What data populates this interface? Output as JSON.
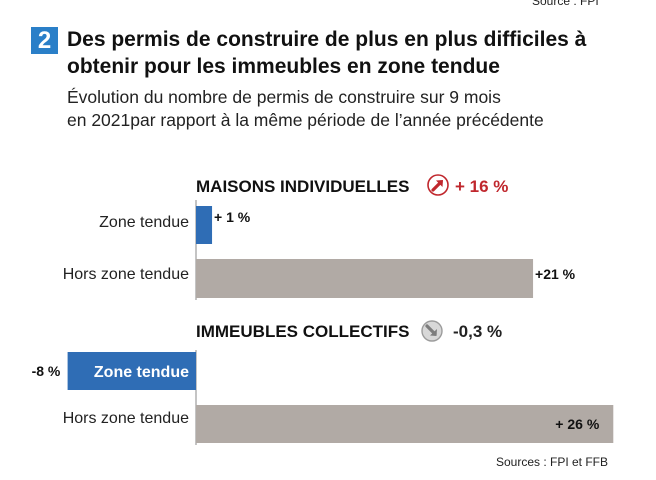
{
  "header": {
    "top_source": "Source : FPI",
    "badge": "2",
    "title": "Des permis de construire de plus en plus difficiles à obtenir pour les immeubles en zone tendue",
    "subtitle_line1": "Évolution du nombre de permis de construire sur 9 mois",
    "subtitle_line2": "en 2021par rapport à la même période de l’année précédente"
  },
  "colors": {
    "zone_tendue": "#2f6db5",
    "hors_zone": "#b1aaa5",
    "up_arrow": "#c0272d",
    "down_arrow": "#9c9c9c"
  },
  "chart_data": {
    "type": "bar",
    "orientation": "horizontal",
    "xlim": [
      -8,
      26
    ],
    "groups": [
      {
        "name": "MAISONS INDIVIDUELLES",
        "total_label": "+ 16 %",
        "total_value": 16,
        "icon": "up-arrow-circle-icon",
        "bars": [
          {
            "category": "Zone tendue",
            "value": 1,
            "label": "+ 1 %"
          },
          {
            "category": "Hors zone tendue",
            "value": 21,
            "label": "+21 %"
          }
        ]
      },
      {
        "name": "IMMEUBLES COLLECTIFS",
        "total_label": "-0,3 %",
        "total_value": -0.3,
        "icon": "down-arrow-circle-icon",
        "bars": [
          {
            "category": "Zone tendue",
            "value": -8,
            "label": "-8 %"
          },
          {
            "category": "Hors zone tendue",
            "value": 26,
            "label": "+ 26 %"
          }
        ]
      }
    ]
  },
  "footer": {
    "sources": "Sources : FPI et FFB"
  }
}
